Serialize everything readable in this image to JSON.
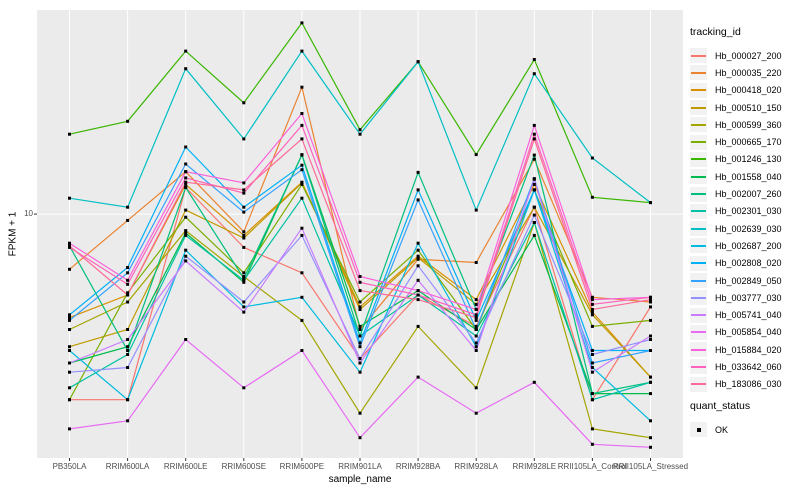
{
  "chart_data": {
    "type": "line",
    "title": "",
    "xlabel": "sample_name",
    "ylabel": "FPKM + 1",
    "y_scale": "log10",
    "ylim": [
      0.9,
      75
    ],
    "ybreaks": [
      10
    ],
    "ytick_labels": [
      "10"
    ],
    "grid": true,
    "legend_position": "right",
    "point_color": "#000000",
    "colors": {
      "panel_bg": "#EBEBEB",
      "grid": "#FFFFFF",
      "tick_mark": "#333333",
      "tick_text": "#4D4D4D"
    },
    "categories": [
      "PB350LA",
      "RRIM600LA",
      "RRIM600LE",
      "RRIM600SE",
      "RRIM600PE",
      "RRIM901LA",
      "RRIM928BA",
      "RRIM928LA",
      "RRIM928LE",
      "RRII105LA_Control",
      "RRII105LA_Stressed"
    ],
    "series": [
      {
        "name": "Hb_000027_200",
        "color": "#F8766D",
        "values": [
          1.6,
          1.6,
          13,
          7.2,
          5.6,
          2.4,
          4.5,
          3.3,
          10.7,
          1.6,
          4.0
        ]
      },
      {
        "name": "Hb_000035_220",
        "color": "#EA8331",
        "values": [
          5.8,
          9.4,
          15.2,
          8.4,
          35,
          3.2,
          6.4,
          6.2,
          17.2,
          4.4,
          4.2
        ]
      },
      {
        "name": "Hb_000418_020",
        "color": "#D89000",
        "values": [
          3.6,
          4.5,
          13.4,
          8.1,
          13.7,
          4.0,
          6.6,
          4.3,
          13.4,
          3.8,
          2.0
        ]
      },
      {
        "name": "Hb_000510_150",
        "color": "#C09B00",
        "values": [
          2.7,
          3.2,
          10.4,
          7.9,
          13.6,
          3.9,
          6.5,
          4.1,
          10.7,
          3.7,
          2.0
        ]
      },
      {
        "name": "Hb_000599_360",
        "color": "#A3A500",
        "values": [
          3.2,
          4.2,
          8.5,
          5.4,
          3.5,
          1.4,
          3.3,
          1.8,
          9.2,
          1.2,
          1.1
        ]
      },
      {
        "name": "Hb_000665_170",
        "color": "#7CAE00",
        "values": [
          1.6,
          4.6,
          9.7,
          5.6,
          13.4,
          4.2,
          7.0,
          3.2,
          12.7,
          3.3,
          3.5
        ]
      },
      {
        "name": "Hb_001246_130",
        "color": "#39B600",
        "values": [
          22,
          25,
          50,
          30,
          66,
          23,
          45,
          18,
          46,
          11.8,
          11.2
        ]
      },
      {
        "name": "Hb_001558_040",
        "color": "#00BB4E",
        "values": [
          2.3,
          2.7,
          8.3,
          5.1,
          18,
          3.3,
          4.7,
          3.2,
          8.1,
          1.7,
          1.7
        ]
      },
      {
        "name": "Hb_002007_260",
        "color": "#00BF7D",
        "values": [
          7.3,
          2.6,
          13,
          5.3,
          17.9,
          3.0,
          15.1,
          3.9,
          17.9,
          1.7,
          1.9
        ]
      },
      {
        "name": "Hb_002301_030",
        "color": "#00C1A3",
        "values": [
          1.8,
          2.5,
          8.1,
          5.2,
          11.7,
          3.0,
          4.5,
          3.0,
          9.2,
          1.6,
          1.9
        ]
      },
      {
        "name": "Hb_002639_030",
        "color": "#00BFC4",
        "values": [
          11.7,
          10.7,
          42,
          21,
          50,
          22,
          45,
          10.4,
          40,
          17.4,
          11.2
        ]
      },
      {
        "name": "Hb_002687_200",
        "color": "#00BAE0",
        "values": [
          2.6,
          1.6,
          7.0,
          4.0,
          4.4,
          2.1,
          7.5,
          2.7,
          12.7,
          2.2,
          1.3
        ]
      },
      {
        "name": "Hb_002808_020",
        "color": "#00B0F6",
        "values": [
          3.7,
          5.9,
          19.4,
          10.7,
          16.2,
          2.8,
          12.7,
          3.5,
          12.7,
          2.6,
          2.6
        ]
      },
      {
        "name": "Hb_002849_050",
        "color": "#35A2FF",
        "values": [
          3.5,
          5.6,
          16.4,
          10.2,
          15.5,
          2.7,
          11.5,
          3.2,
          14.2,
          2.3,
          2.6
        ]
      },
      {
        "name": "Hb_003777_030",
        "color": "#9590FF",
        "values": [
          2.1,
          2.2,
          6.6,
          4.2,
          8.1,
          2.4,
          6.0,
          2.8,
          9.9,
          2.5,
          2.9
        ]
      },
      {
        "name": "Hb_005741_040",
        "color": "#C77CFF",
        "values": [
          2.3,
          2.9,
          6.3,
          3.8,
          8.7,
          2.3,
          5.2,
          2.6,
          14.1,
          2.1,
          3.0
        ]
      },
      {
        "name": "Hb_005854_040",
        "color": "#E76BF3",
        "values": [
          1.2,
          1.3,
          2.9,
          1.8,
          2.6,
          1.1,
          2.0,
          1.4,
          1.9,
          1.03,
          1.0
        ]
      },
      {
        "name": "Hb_015884_020",
        "color": "#FA62DB",
        "values": [
          7.5,
          5.2,
          15.2,
          13.6,
          27,
          5.4,
          4.7,
          3.9,
          24,
          4.3,
          4.4
        ]
      },
      {
        "name": "Hb_033642_060",
        "color": "#FF62BC",
        "values": [
          7.2,
          5.0,
          14.3,
          12.3,
          24,
          5.1,
          4.5,
          3.7,
          22,
          4.1,
          4.4
        ]
      },
      {
        "name": "Hb_183086_030",
        "color": "#FF6A98",
        "values": [
          7.3,
          4.5,
          13.7,
          12.7,
          21,
          4.7,
          4.3,
          3.6,
          21,
          3.9,
          4.3
        ]
      }
    ]
  },
  "legend": {
    "tracking_title": "tracking_id",
    "quant_title": "quant_status",
    "quant_items": [
      {
        "label": "OK",
        "marker": "black-square"
      }
    ]
  }
}
